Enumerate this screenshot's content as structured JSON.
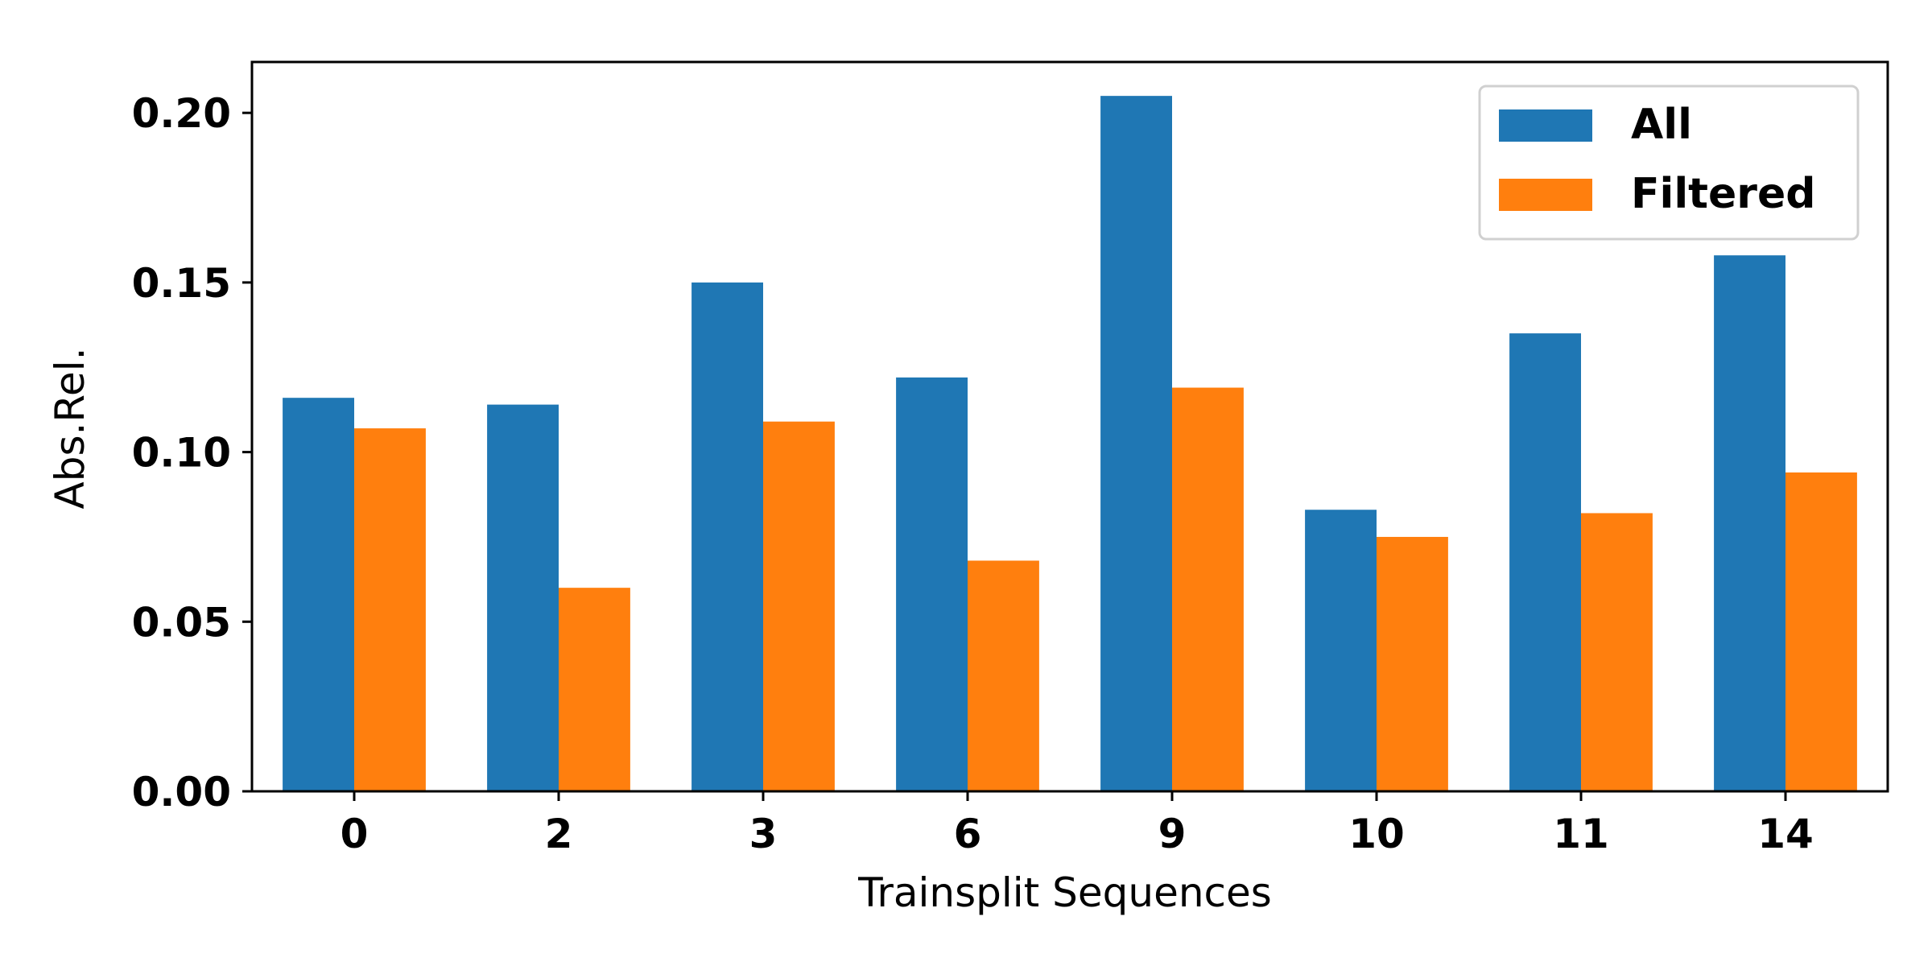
{
  "chart_data": {
    "type": "bar",
    "title": "",
    "xlabel": "Trainsplit Sequences",
    "ylabel": "Abs.Rel.",
    "categories": [
      "0",
      "2",
      "3",
      "6",
      "9",
      "10",
      "11",
      "14"
    ],
    "series": [
      {
        "name": "All",
        "color": "#1f77b4",
        "values": [
          0.116,
          0.114,
          0.15,
          0.122,
          0.205,
          0.083,
          0.135,
          0.158
        ]
      },
      {
        "name": "Filtered",
        "color": "#ff7f0e",
        "values": [
          0.107,
          0.06,
          0.109,
          0.068,
          0.119,
          0.075,
          0.082,
          0.094
        ]
      }
    ],
    "ylim": [
      0,
      0.215
    ],
    "yticks": [
      "0.00",
      "0.05",
      "0.10",
      "0.15",
      "0.20"
    ],
    "grid": false,
    "legend": "top-right"
  }
}
